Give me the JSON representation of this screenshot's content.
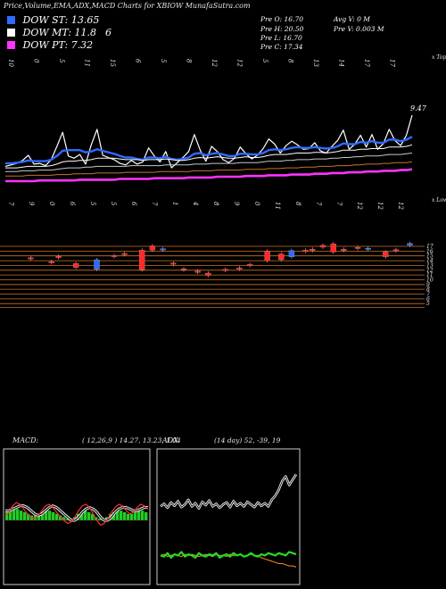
{
  "header": {
    "title": "Price,Volume,EMA,ADX,MACD Charts for XBIOW MunafaSutra.com"
  },
  "legend": [
    {
      "label": "DOW ST: 13.65",
      "color": "#2f6bff"
    },
    {
      "label": "DOW MT: 11.8",
      "color": "#ffffff"
    },
    {
      "label": "DOW PT: 7.32",
      "color": "#ff33ff"
    }
  ],
  "legend_extra": "6",
  "stats_left": [
    "Pre  O: 16.70",
    "Pre  H: 20.50",
    "Pre  L: 16.70",
    "Pre  C: 17.34"
  ],
  "stats_right": [
    "Avg V: 0  M",
    "Pre  V: 0.003 M"
  ],
  "colors": {
    "ema_fast": "#2f6bff",
    "dow_pt": "#ff33ff",
    "up_candle": "#2f6bff",
    "down_candle": "#ff2a2a",
    "grid_orange": "#c8722a",
    "macd_hist": "#22cc22",
    "adx_green": "#22dd22",
    "adx_orange": "#ff8c1a"
  },
  "chart_data": [
    {
      "type": "line",
      "name": "price_panel",
      "right_label": "x Tops",
      "last_value_label": "9.47",
      "top_tick_labels": [
        "10",
        "0",
        "5",
        "11",
        "15",
        "6",
        "5",
        "8",
        "12",
        "12",
        "5",
        "8",
        "13",
        "14",
        "17",
        "17"
      ],
      "series": [
        {
          "values": [
            12.6,
            12.8,
            13.0,
            13.4,
            14.1,
            12.9,
            13.0,
            12.7,
            13.5,
            15.3,
            17.2,
            14.0,
            13.7,
            14.2,
            12.9,
            15.5,
            17.6,
            14.1,
            13.8,
            13.5,
            13.0,
            12.8,
            13.4,
            12.9,
            13.2,
            15.1,
            14.0,
            13.2,
            14.6,
            12.4,
            13.1,
            13.8,
            14.6,
            16.9,
            14.8,
            13.3,
            15.3,
            14.6,
            13.5,
            13.1,
            13.7,
            15.2,
            14.3,
            13.6,
            14.1,
            15.0,
            16.3,
            15.6,
            14.4,
            15.4,
            16.0,
            15.5,
            14.9,
            15.0,
            15.8,
            14.7,
            14.4,
            15.3,
            16.1,
            17.5,
            14.9,
            15.6,
            16.8,
            15.2,
            16.9,
            14.9,
            15.7,
            17.6,
            16.1,
            15.4,
            16.8,
            19.5
          ]
        },
        {
          "name": "DOW ST",
          "values": [
            13.0,
            13.0,
            13.1,
            13.2,
            13.4,
            13.3,
            13.3,
            13.3,
            13.5,
            14.0,
            14.7,
            14.8,
            14.8,
            14.8,
            14.5,
            14.6,
            14.9,
            14.7,
            14.5,
            14.3,
            14.0,
            13.8,
            13.8,
            13.6,
            13.5,
            13.8,
            13.8,
            13.7,
            13.9,
            13.6,
            13.5,
            13.6,
            13.8,
            14.3,
            14.4,
            14.1,
            14.3,
            14.4,
            14.2,
            14.0,
            14.0,
            14.3,
            14.3,
            14.2,
            14.2,
            14.4,
            14.8,
            14.9,
            14.8,
            14.9,
            15.1,
            15.2,
            15.1,
            15.1,
            15.2,
            15.1,
            15.0,
            15.1,
            15.3,
            15.7,
            15.6,
            15.6,
            15.9,
            15.8,
            16.0,
            15.8,
            15.8,
            16.2,
            16.2,
            16.0,
            16.2,
            16.6
          ]
        },
        {
          "name": "DOW MT",
          "values": [
            12.4,
            12.4,
            12.4,
            12.5,
            12.6,
            12.6,
            12.6,
            12.6,
            12.7,
            12.9,
            13.2,
            13.3,
            13.3,
            13.4,
            13.4,
            13.5,
            13.7,
            13.7,
            13.7,
            13.7,
            13.6,
            13.5,
            13.5,
            13.5,
            13.4,
            13.5,
            13.5,
            13.5,
            13.6,
            13.5,
            13.4,
            13.4,
            13.5,
            13.7,
            13.8,
            13.7,
            13.8,
            13.9,
            13.8,
            13.7,
            13.7,
            13.8,
            13.9,
            13.8,
            13.8,
            13.9,
            14.1,
            14.2,
            14.2,
            14.2,
            14.3,
            14.4,
            14.4,
            14.4,
            14.5,
            14.5,
            14.4,
            14.5,
            14.6,
            14.8,
            14.8,
            14.8,
            14.9,
            14.9,
            15.0,
            15.0,
            15.0,
            15.2,
            15.2,
            15.2,
            15.3,
            15.5
          ]
        },
        {
          "values": [
            11.9,
            11.9,
            11.9,
            12.0,
            12.0,
            12.0,
            12.1,
            12.1,
            12.1,
            12.2,
            12.3,
            12.4,
            12.4,
            12.4,
            12.5,
            12.5,
            12.6,
            12.6,
            12.6,
            12.6,
            12.6,
            12.6,
            12.7,
            12.7,
            12.7,
            12.7,
            12.7,
            12.7,
            12.8,
            12.8,
            12.8,
            12.8,
            12.8,
            12.9,
            12.9,
            12.9,
            13.0,
            13.0,
            13.0,
            13.0,
            13.0,
            13.1,
            13.1,
            13.1,
            13.1,
            13.2,
            13.3,
            13.3,
            13.3,
            13.4,
            13.4,
            13.5,
            13.5,
            13.5,
            13.6,
            13.6,
            13.6,
            13.7,
            13.7,
            13.8,
            13.8,
            13.9,
            13.9,
            14.0,
            14.0,
            14.0,
            14.1,
            14.2,
            14.2,
            14.2,
            14.3,
            14.4
          ]
        },
        {
          "values": [
            11.3,
            11.3,
            11.3,
            11.3,
            11.4,
            11.4,
            11.4,
            11.4,
            11.4,
            11.5,
            11.5,
            11.5,
            11.6,
            11.6,
            11.6,
            11.6,
            11.7,
            11.7,
            11.7,
            11.7,
            11.7,
            11.8,
            11.8,
            11.8,
            11.8,
            11.8,
            11.8,
            11.9,
            11.9,
            11.9,
            11.9,
            11.9,
            11.9,
            12.0,
            12.0,
            12.0,
            12.0,
            12.1,
            12.1,
            12.1,
            12.1,
            12.1,
            12.2,
            12.2,
            12.2,
            12.2,
            12.3,
            12.3,
            12.3,
            12.4,
            12.4,
            12.4,
            12.5,
            12.5,
            12.5,
            12.6,
            12.6,
            12.6,
            12.7,
            12.7,
            12.7,
            12.8,
            12.8,
            12.9,
            12.9,
            12.9,
            13.0,
            13.0,
            13.1,
            13.1,
            13.1,
            13.2
          ]
        },
        {
          "name": "DOW PT",
          "values": [
            10.6,
            10.6,
            10.6,
            10.6,
            10.6,
            10.6,
            10.7,
            10.7,
            10.7,
            10.7,
            10.7,
            10.7,
            10.7,
            10.8,
            10.8,
            10.8,
            10.8,
            10.8,
            10.8,
            10.8,
            10.9,
            10.9,
            10.9,
            10.9,
            10.9,
            10.9,
            11.0,
            11.0,
            11.0,
            11.0,
            11.0,
            11.0,
            11.1,
            11.1,
            11.1,
            11.1,
            11.1,
            11.2,
            11.2,
            11.2,
            11.2,
            11.2,
            11.3,
            11.3,
            11.3,
            11.3,
            11.4,
            11.4,
            11.4,
            11.4,
            11.5,
            11.5,
            11.5,
            11.5,
            11.6,
            11.6,
            11.6,
            11.7,
            11.7,
            11.7,
            11.8,
            11.8,
            11.8,
            11.9,
            11.9,
            11.9,
            12.0,
            12.0,
            12.0,
            12.1,
            12.1,
            12.2
          ]
        }
      ]
    },
    {
      "type": "bar",
      "name": "volume_panel",
      "right_label": "x Lows",
      "top_tick_labels": [
        "7",
        "9",
        "0",
        "6",
        "5",
        "5",
        "6",
        "7",
        "1",
        "4",
        "8",
        "9",
        "0",
        "11",
        "8",
        "7",
        "7",
        "12",
        "12",
        "12"
      ],
      "right_ticks": [
        "17",
        "16",
        "15",
        "14",
        "13",
        "12",
        "11",
        "10",
        "9",
        "8",
        "7",
        "6",
        "5"
      ],
      "candles": [
        {
          "i": 6,
          "o": 14.6,
          "c": 14.5
        },
        {
          "i": 12,
          "o": 13.8,
          "c": 13.7
        },
        {
          "i": 14,
          "o": 14.9,
          "c": 14.8
        },
        {
          "i": 19,
          "o": 13.4,
          "c": 12.6
        },
        {
          "i": 25,
          "o": 12.2,
          "c": 14.2
        },
        {
          "i": 30,
          "o": 15.1,
          "c": 14.9
        },
        {
          "i": 33,
          "o": 15.5,
          "c": 15.4
        },
        {
          "i": 38,
          "o": 16.2,
          "c": 12.1
        },
        {
          "i": 41,
          "o": 17.1,
          "c": 16.2
        },
        {
          "i": 44,
          "o": 16.3,
          "c": 16.5
        },
        {
          "i": 47,
          "o": 13.5,
          "c": 13.4
        },
        {
          "i": 50,
          "o": 12.3,
          "c": 12.2
        },
        {
          "i": 54,
          "o": 11.8,
          "c": 11.7
        },
        {
          "i": 57,
          "o": 11.4,
          "c": 10.9
        },
        {
          "i": 62,
          "o": 12.2,
          "c": 12.1
        },
        {
          "i": 66,
          "o": 12.5,
          "c": 12.4
        },
        {
          "i": 69,
          "o": 13.2,
          "c": 13.1
        },
        {
          "i": 74,
          "o": 16.0,
          "c": 14.0
        },
        {
          "i": 78,
          "o": 15.4,
          "c": 14.2
        },
        {
          "i": 81,
          "o": 14.8,
          "c": 16.1
        },
        {
          "i": 85,
          "o": 16.2,
          "c": 16.1
        },
        {
          "i": 87,
          "o": 16.4,
          "c": 16.3
        },
        {
          "i": 90,
          "o": 17.2,
          "c": 16.8
        },
        {
          "i": 93,
          "o": 17.5,
          "c": 15.8
        },
        {
          "i": 96,
          "o": 16.4,
          "c": 16.3
        },
        {
          "i": 100,
          "o": 16.8,
          "c": 16.6
        },
        {
          "i": 103,
          "o": 16.5,
          "c": 16.6
        },
        {
          "i": 108,
          "o": 15.8,
          "c": 14.8
        },
        {
          "i": 111,
          "o": 16.3,
          "c": 16.2
        },
        {
          "i": 115,
          "o": 17.2,
          "c": 17.6
        }
      ]
    },
    {
      "type": "line",
      "name": "MACD",
      "title": "MACD:",
      "params": "( 12,26,9 ) 14.27,  13.23,  1.04",
      "series": [
        {
          "values": [
            0.3,
            0.5,
            0.9,
            1.1,
            1.0,
            0.7,
            0.4,
            0.2,
            0.1,
            0.3,
            0.6,
            0.9,
            1.0,
            0.8,
            0.5,
            0.2,
            0.0,
            -0.2,
            -0.1,
            0.2,
            0.6,
            0.9,
            1.0,
            0.8,
            0.4,
            0.0,
            -0.3,
            -0.2,
            0.1,
            0.5,
            0.8,
            1.0,
            0.9,
            0.6,
            0.4,
            0.5,
            0.8,
            1.0,
            0.9,
            0.7
          ]
        },
        {
          "values": [
            0.6,
            0.6,
            0.7,
            0.8,
            0.9,
            0.9,
            0.8,
            0.6,
            0.4,
            0.3,
            0.4,
            0.6,
            0.8,
            0.9,
            0.8,
            0.6,
            0.4,
            0.2,
            0.0,
            0.0,
            0.2,
            0.5,
            0.7,
            0.8,
            0.7,
            0.5,
            0.2,
            0.0,
            0.0,
            0.2,
            0.5,
            0.7,
            0.8,
            0.8,
            0.7,
            0.6,
            0.6,
            0.7,
            0.8,
            0.8
          ]
        }
      ],
      "histogram": [
        0.5,
        0.6,
        0.7,
        0.7,
        0.6,
        0.5,
        0.4,
        0.3,
        0.3,
        0.4,
        0.5,
        0.6,
        0.6,
        0.5,
        0.4,
        0.3,
        0.2,
        0.1,
        0.1,
        0.2,
        0.4,
        0.5,
        0.6,
        0.5,
        0.4,
        0.2,
        0.1,
        0.1,
        0.2,
        0.4,
        0.5,
        0.6,
        0.6,
        0.5,
        0.4,
        0.4,
        0.5,
        0.6,
        0.6,
        0.5
      ]
    },
    {
      "type": "line",
      "name": "ADX",
      "title": "ADX",
      "params": "(14  day) 52,  -39,  19",
      "series": [
        {
          "values": [
            30,
            34,
            28,
            36,
            31,
            38,
            29,
            33,
            40,
            30,
            35,
            27,
            37,
            32,
            39,
            30,
            34,
            28,
            33,
            36,
            29,
            38,
            31,
            35,
            30,
            37,
            33,
            29,
            36,
            31,
            35,
            30,
            40,
            46,
            55,
            68,
            75,
            62,
            70,
            78
          ]
        },
        {
          "values": [
            12,
            11,
            14,
            10,
            13,
            12,
            15,
            11,
            13,
            12,
            10,
            14,
            12,
            11,
            13,
            12,
            14,
            10,
            12,
            13,
            11,
            14,
            12,
            13,
            11,
            12,
            14,
            12,
            11,
            13,
            12,
            14,
            13,
            12,
            14,
            13,
            12,
            15,
            14,
            13
          ]
        },
        {
          "values": [
            12,
            13,
            11,
            12,
            13,
            12,
            11,
            13,
            12,
            13,
            12,
            11,
            12,
            13,
            12,
            11,
            13,
            12,
            12,
            11,
            13,
            12,
            12,
            13,
            11,
            12,
            13,
            12,
            12,
            10,
            9,
            8,
            7,
            6,
            5,
            5,
            4,
            3,
            3,
            2
          ]
        }
      ]
    }
  ]
}
